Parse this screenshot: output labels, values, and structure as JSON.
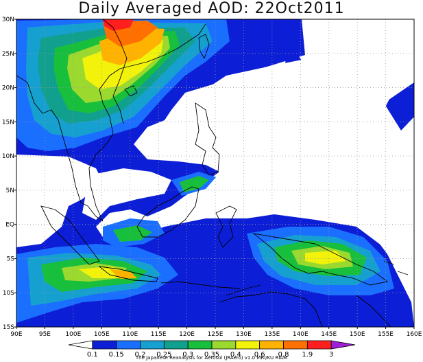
{
  "title": "Daily Averaged AOD: 22Oct2011",
  "map": {
    "lon_range": [
      90,
      160
    ],
    "lat_range": [
      -15,
      30
    ],
    "lon_ticks": [
      "90E",
      "95E",
      "100E",
      "105E",
      "110E",
      "115E",
      "120E",
      "125E",
      "130E",
      "135E",
      "140E",
      "145E",
      "150E",
      "155E",
      "160E"
    ],
    "lat_ticks": [
      "30N",
      "25N",
      "20N",
      "15N",
      "10N",
      "5N",
      "EQ",
      "5S",
      "10S",
      "15S"
    ],
    "gridlines": "dotted"
  },
  "colorbar": {
    "levels": [
      "0.1",
      "0.15",
      "0.2",
      "0.25",
      "0.3",
      "0.35",
      "0.4",
      "0.6",
      "0.8",
      "1.9",
      "3"
    ],
    "colors": [
      "#ffffff",
      "#0d1fd6",
      "#1a6fff",
      "#16a0d0",
      "#12a08e",
      "#18bf3c",
      "#9bd92e",
      "#f2f20b",
      "#ffb300",
      "#ff7000",
      "#ff1f1f",
      "#9d1fd6"
    ]
  },
  "credit": "The Japanese Reanalysis for Aerosol (JRAero) v1.0 MRI/KU RIAM"
}
